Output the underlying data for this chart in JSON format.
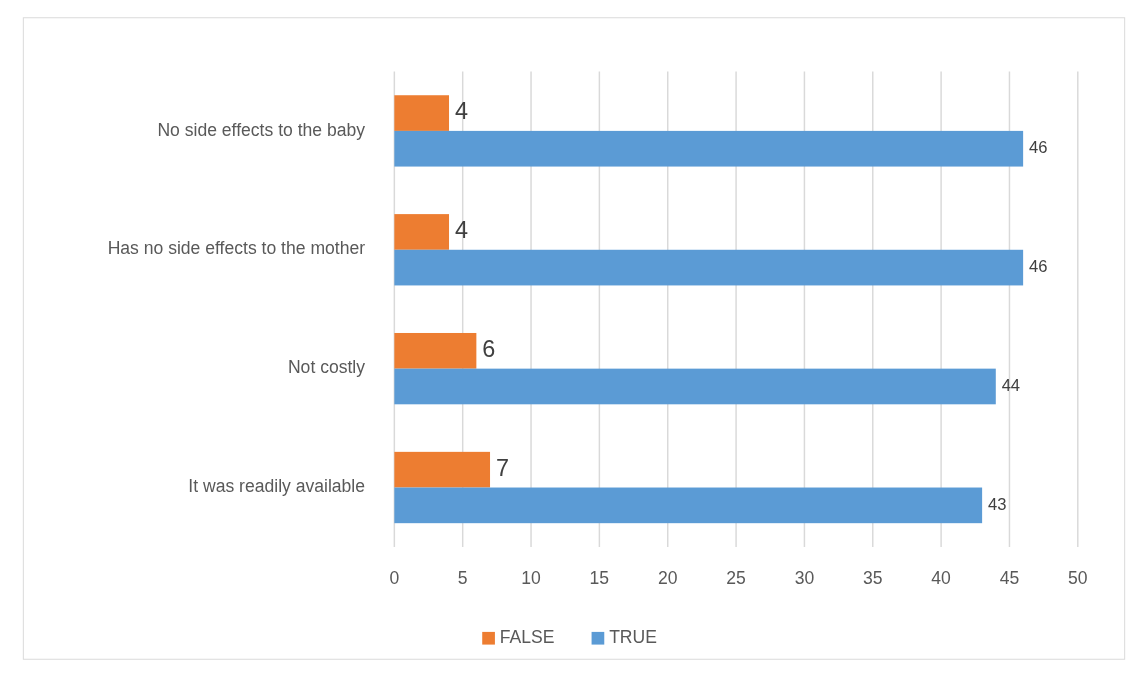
{
  "chart_data": {
    "type": "bar",
    "orientation": "horizontal",
    "categories": [
      "No side effects to the baby",
      "Has no side effects to the mother",
      "Not costly",
      "It was readily available"
    ],
    "series": [
      {
        "name": "FALSE",
        "color": "#ed7d31",
        "values": [
          4,
          4,
          6,
          7
        ]
      },
      {
        "name": "TRUE",
        "color": "#5b9bd5",
        "values": [
          46,
          46,
          44,
          43
        ]
      }
    ],
    "xlim": [
      0,
      50
    ],
    "xticks": [
      0,
      5,
      10,
      15,
      20,
      25,
      30,
      35,
      40,
      45,
      50
    ],
    "grid": "x",
    "legend": "bottom",
    "data_labels": true
  }
}
